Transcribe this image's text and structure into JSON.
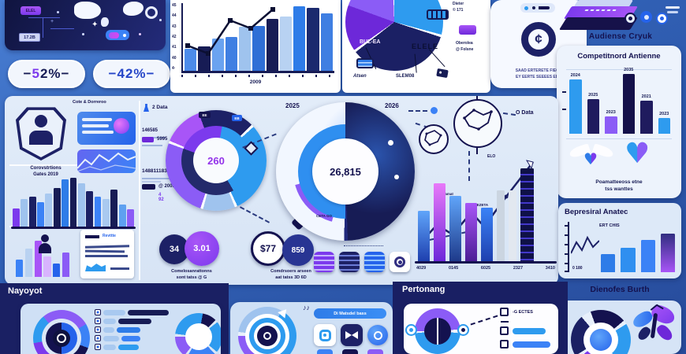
{
  "colors": {
    "bg_top": "#4a7fd4",
    "bg_bottom": "#274b9b",
    "panel_light": "#dce8f7",
    "navy": "#14124f",
    "purple": "#7c3aed",
    "blue": "#2e7ce8",
    "light_blue": "#9fc3ee",
    "magenta": "#d946ef",
    "white": "#ffffff"
  },
  "top_left_panel": {
    "badge": "ELEL",
    "chip": "17.2B"
  },
  "stat_pills": [
    {
      "prefix": "−",
      "hi": "5",
      "rest": "2%",
      "suffix": "−",
      "hi_color": "#7c3aed",
      "rest_color": "#171c55"
    },
    {
      "prefix": "−",
      "hi": "4",
      "rest": "2%",
      "suffix": "−",
      "hi_color": "#2646c8",
      "rest_color": "#2646c8"
    }
  ],
  "growth_panel": {
    "x_label": "2009",
    "y_ticks": [
      "45",
      "44",
      "43",
      "42",
      "41",
      "40",
      "4·"
    ]
  },
  "pie_panel": {
    "slice_label": "BUZ-EA",
    "stamp": "ELELE",
    "legend": [
      {
        "line1": "Dieter",
        "line2": "© 171"
      },
      {
        "line1": "Oberolea",
        "line2": "@ Folsne"
      }
    ],
    "callouts": [
      "Atsen",
      "SLEM08"
    ]
  },
  "finance_card": {
    "caption_line1": "SAAD ERTERETE FIEOS",
    "caption_line2": "EY EERTE SEEEES EEO"
  },
  "audience": {
    "caption": "Audiense Cryuk"
  },
  "competitors": {
    "title": "Competitnord Antienne",
    "caption_line1": "Poamatteeoss etne",
    "caption_line2": "tss wanttes"
  },
  "overview": {
    "top_caption": "Cote & Dorreroo",
    "shield_caption1": "Corovstrtions",
    "shield_caption2": "Gates 2019",
    "card_label": "Revttte",
    "list": [
      {
        "label": "2 Data"
      },
      {
        "label": "146585"
      },
      {
        "label": "5995"
      },
      {
        "label": "148811183"
      },
      {
        "label": "@ 2003",
        "extra": "4 92"
      }
    ],
    "donut_value": "260",
    "donut_tag1": "EE",
    "donut_tag2": "EB",
    "stats": [
      {
        "a": "34",
        "b": "3.01",
        "cap1": "Comelosanrattonns",
        "cap2": "sont tatss @ G"
      },
      {
        "a": "$77",
        "b": "859",
        "cap1": "Comdrsoers arseen",
        "cap2": "aat tatss 3D 6D"
      }
    ],
    "big_donut": {
      "value": "26,815",
      "year_left": "2025",
      "year_right": "2026",
      "inner_label": "CETA GO"
    },
    "data_label": "O Data",
    "small_label": "ELO",
    "line_label1": "Tamat",
    "line_label2": "TEZETA"
  },
  "behavioral": {
    "title": "Bepresiral Anatec",
    "label_top": "ERT CHIS",
    "label_bottom": "0 180"
  },
  "discovery": {
    "title": "Dienofes Burth"
  },
  "bottom": {
    "nav_title": "Nayoyot",
    "perf_title": "Pertonang",
    "pill_label": "Di Matsdel bass",
    "check_label": "-G ECTES"
  },
  "chart_data": [
    {
      "id": "growth_bars",
      "type": "bar",
      "xlabel": "2009",
      "values": [
        34,
        38,
        50,
        53,
        68,
        70,
        80,
        84,
        100,
        97,
        89
      ],
      "colors": [
        "#4c8bea",
        "#171c55",
        "#6aa3f0",
        "#3f7fe2",
        "#9fc3ee",
        "#2f6fd6",
        "#171c55",
        "#b8d2f2",
        "#2e7ce8",
        "#1b2a6e",
        "#3f7fe2"
      ],
      "line_overlay": [
        52,
        62,
        20,
        30,
        6
      ],
      "ylim": [
        0,
        100
      ],
      "grid": true
    },
    {
      "id": "share_pie",
      "type": "pie",
      "slices": [
        {
          "label": "Dieter",
          "value": 29,
          "color": "#2e9bef"
        },
        {
          "label": "SLEM08",
          "value": 34,
          "color": "#1b2064"
        },
        {
          "label": "BUZ-EA",
          "value": 37,
          "color": "#7c3aed"
        }
      ]
    },
    {
      "id": "competitor_bars",
      "type": "bar",
      "label_pos": "above",
      "categories": [
        "2024",
        "2025",
        "2023",
        "2035",
        "2021",
        "2023"
      ],
      "values": [
        82,
        52,
        26,
        94,
        50,
        24
      ],
      "colors": [
        "#2e9bef",
        "#1f1b5e",
        "#8b5cf6",
        "#14104a",
        "#1f1b5e",
        "#2e9bef"
      ],
      "ylim": [
        0,
        100
      ]
    },
    {
      "id": "allocation_donut",
      "type": "pie",
      "center_value": "260",
      "slices": [
        {
          "value": 15,
          "color": "#1d2166"
        },
        {
          "value": 30,
          "color": "#2e9bef"
        },
        {
          "value": 10,
          "color": "#9fc3ee"
        },
        {
          "value": 31,
          "color": "#8b5cf6"
        },
        {
          "value": 14,
          "color": "#a855f7"
        }
      ]
    },
    {
      "id": "forecast_donut",
      "type": "pie",
      "center_value": "26,815",
      "slices": [
        {
          "label": "2026",
          "value": 50,
          "color": "#171c55"
        },
        {
          "label": "2025",
          "value": 50,
          "color": "#eef4fd"
        }
      ]
    },
    {
      "id": "performance_bars",
      "type": "bar",
      "categories": [
        "4029",
        "0145",
        "6025",
        "2327",
        "3410"
      ],
      "values": [
        54,
        84,
        70,
        63,
        58,
        76,
        76,
        100
      ],
      "widths": [
        15,
        15,
        15,
        15,
        15,
        10,
        10,
        17
      ],
      "colors": [
        "linear-gradient(180deg,#60a5fa,#1e40af)",
        "linear-gradient(180deg,#e879f9,#6d28d9)",
        "linear-gradient(180deg,#60a5fa,#1e3a8a)",
        "linear-gradient(180deg,#a855f7,#4c1d95)",
        "linear-gradient(180deg,#3b82f6,#1e40af)",
        "#cbd5e1",
        "#e2e8f0",
        "repeating-linear-gradient(180deg,#0f1147 0 7px,#4338ca 7px 9px)"
      ],
      "ylim": [
        0,
        100
      ]
    },
    {
      "id": "distribution_bars",
      "type": "bar",
      "values": [
        36,
        54,
        60,
        48,
        66,
        76,
        94,
        97,
        86,
        70,
        60,
        54,
        74,
        44,
        34
      ],
      "colors": [
        "#7c3aed",
        "#9fc3ee",
        "#1b2064",
        "#3b82f6",
        "#a9c9f0",
        "#171c55",
        "#2e7ce8",
        "#171c55",
        "#9fc3ee",
        "#1b2064",
        "#3b82f6",
        "#a9c9f0",
        "#171c55",
        "#5ea0f0",
        "#8b5cf6"
      ]
    },
    {
      "id": "behavioral_bars",
      "type": "bar",
      "values": [
        38,
        52,
        68,
        82
      ],
      "colors": [
        "#2e7ce8",
        "#2f8ff0",
        "#3b82f6",
        "linear-gradient(180deg,#312e81,#a855f7)"
      ]
    },
    {
      "id": "mini_bars",
      "type": "bar",
      "values": [
        45,
        75,
        95,
        55,
        35,
        65
      ],
      "colors": [
        "#3b82f6",
        "#b9d2f1",
        "#a855f7",
        "#d8b4fe",
        "#2563eb",
        "#8b5cf6"
      ]
    },
    {
      "id": "checklist_bars",
      "type": "table",
      "rows": [
        {
          "w1": 28,
          "w2": 52,
          "c": "#171c55"
        },
        {
          "w1": 16,
          "w2": 42,
          "c": "#171c55"
        },
        {
          "w1": 14,
          "w2": 30,
          "c": "#2e7ce8"
        },
        {
          "w1": 20,
          "w2": 24,
          "c": "#3b82f6"
        },
        {
          "w1": 16,
          "w2": 26,
          "c": "#2e9bef"
        }
      ]
    }
  ]
}
